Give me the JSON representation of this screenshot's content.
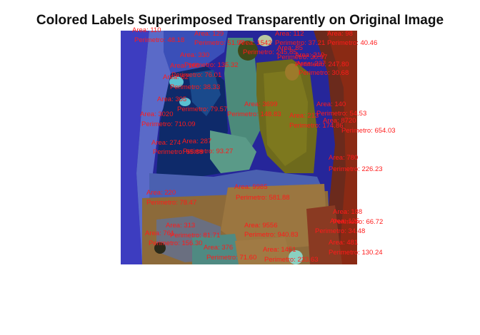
{
  "figure": {
    "title": "Colored Labels Superimposed Transparently on Original Image",
    "annotation_color": "#ff1a1a",
    "region_labels": [
      {
        "area": "Area: 110",
        "perimeter": "Perimetro: 48.18"
      },
      {
        "area": "Area: 129",
        "perimeter": "Perimetro: 51.97"
      },
      {
        "area": "Area: 1542",
        "perimeter": "Perimetro: 245.85"
      },
      {
        "area": "Area: 112",
        "perimeter": "Perimetro: 37.21"
      },
      {
        "area": "Area: 98",
        "perimeter": "Perimetro: 40.46"
      },
      {
        "area": "Area: 85",
        "perimeter": "Perimetro: 30.97"
      },
      {
        "area": "Area: 330",
        "perimeter": "Perimetro: 135.32"
      },
      {
        "area": "Area: 210",
        "perimeter": "Perimetro: 247.80"
      },
      {
        "area": "Area: 237",
        "perimeter": "Perimetro: 30.68"
      },
      {
        "area": "Area: 160",
        "perimeter": "Perimetro: 76.01"
      },
      {
        "area": "Area: 62",
        "perimeter": "Perimetro: 38.33"
      },
      {
        "area": "Area: 305",
        "perimeter": "Perimetro: 79.57"
      },
      {
        "area": "Area: 3020",
        "perimeter": "Perimetro: 710.09"
      },
      {
        "area": "Area: 3699",
        "perimeter": "Perimetro: 148.83"
      },
      {
        "area": "Area: 140",
        "perimeter": "Perimetro: 54.53"
      },
      {
        "area": "Area: 8720",
        "perimeter": "Perimetro: 654.03"
      },
      {
        "area": "Area: 213",
        "perimeter": "Perimetro: 174.86"
      },
      {
        "area": "Area: 274",
        "perimeter": "Perimetro: 93.27"
      },
      {
        "area": "Area: 287",
        "perimeter": "Perimetro: 65.88"
      },
      {
        "area": "Area: 780",
        "perimeter": "Perimetro: 226.23"
      },
      {
        "area": "Area: 9985",
        "perimeter": "Perimetro: 581.88"
      },
      {
        "area": "Area: 220",
        "perimeter": "Perimetro: 78.47"
      },
      {
        "area": "Area: 188",
        "perimeter": "Perimetro: 66.72"
      },
      {
        "area": "Area: 313",
        "perimeter": "Perimetro: 81.71"
      },
      {
        "area": "Area: 9556",
        "perimeter": "Perimetro: 940.83"
      },
      {
        "area": "Area: 125",
        "perimeter": "Perimetro: 34.48"
      },
      {
        "area": "Area: 761",
        "perimeter": "Perimetro: 156.30"
      },
      {
        "area": "Area: 481",
        "perimeter": "Perimetro: 130.24"
      },
      {
        "area": "Area: 376",
        "perimeter": "Perimetro: 71.60"
      },
      {
        "area": "Area: 1451",
        "perimeter": "Perimetro: 233.63"
      }
    ]
  }
}
